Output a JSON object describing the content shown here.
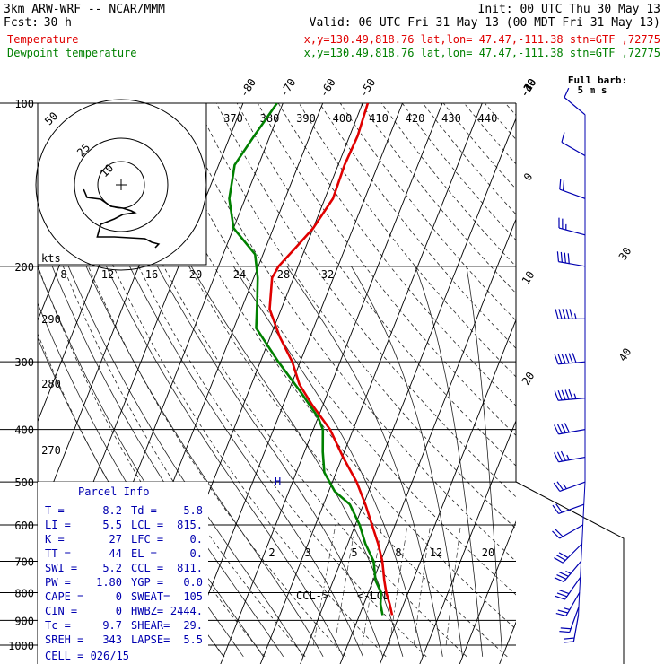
{
  "header": {
    "model": "3km ARW-WRF -- NCAR/MMM",
    "init": "Init: 00 UTC Thu 30 May 13",
    "fcst_label": "Fcst:",
    "fcst_value": "30 h",
    "valid": "Valid: 06 UTC Fri 31 May 13 (00 MDT Fri 31 May 13)",
    "temp_label": "Temperature",
    "dew_label": "Dewpoint temperature",
    "loc": "x,y=130.49,818.76   lat,lon= 47.47,-111.38   stn=GTF ,72775",
    "colors": {
      "temperature": "#e00000",
      "dewpoint": "#008000",
      "wind": "#0000b0"
    }
  },
  "chart_data": {
    "type": "line",
    "title": "",
    "diagram": "skew-T log-p",
    "y_axis": {
      "scale": "log",
      "unit": "hPa",
      "range": [
        1000,
        100
      ],
      "ticks": [
        100,
        200,
        300,
        400,
        500,
        600,
        700,
        800,
        900,
        1000
      ]
    },
    "isotherm_labels": [
      -80,
      -70,
      -60,
      -50,
      -40,
      -30,
      -20,
      -10,
      0,
      10,
      20,
      30,
      40
    ],
    "theta_e_labels": [
      370,
      380,
      390,
      400,
      410,
      420,
      430,
      440
    ],
    "theta_e_labels_left": [
      290,
      280,
      270
    ],
    "mixing_ratio_labels": [
      2,
      3,
      5,
      8,
      12,
      20
    ],
    "series": [
      {
        "name": "Temperature",
        "color": "#e00000",
        "points": [
          [
            880,
            8.2
          ],
          [
            840,
            6.5
          ],
          [
            800,
            4.5
          ],
          [
            760,
            2.8
          ],
          [
            700,
            0.4
          ],
          [
            650,
            -2.4
          ],
          [
            600,
            -5.8
          ],
          [
            550,
            -9.5
          ],
          [
            500,
            -13.9
          ],
          [
            450,
            -19.8
          ],
          [
            400,
            -25.8
          ],
          [
            360,
            -32.8
          ],
          [
            330,
            -38
          ],
          [
            300,
            -42
          ],
          [
            270,
            -47.6
          ],
          [
            240,
            -52.9
          ],
          [
            210,
            -55.4
          ],
          [
            200,
            -54.9
          ],
          [
            185,
            -52.5
          ],
          [
            170,
            -50
          ],
          [
            150,
            -48
          ],
          [
            130,
            -48.4
          ],
          [
            115,
            -48
          ],
          [
            100,
            -48.7
          ]
        ]
      },
      {
        "name": "Dewpoint temperature",
        "color": "#008000",
        "points": [
          [
            880,
            5.8
          ],
          [
            840,
            4.2
          ],
          [
            800,
            3.2
          ],
          [
            760,
            0.6
          ],
          [
            700,
            -1.8
          ],
          [
            650,
            -5.6
          ],
          [
            600,
            -8.9
          ],
          [
            550,
            -13.4
          ],
          [
            520,
            -18.5
          ],
          [
            480,
            -23
          ],
          [
            440,
            -25.4
          ],
          [
            400,
            -27.6
          ],
          [
            380,
            -30
          ],
          [
            340,
            -37.1
          ],
          [
            300,
            -45.5
          ],
          [
            260,
            -54.4
          ],
          [
            230,
            -57
          ],
          [
            210,
            -59
          ],
          [
            190,
            -62
          ],
          [
            170,
            -70
          ],
          [
            150,
            -74
          ],
          [
            130,
            -76
          ],
          [
            115,
            -74
          ],
          [
            100,
            -71.5
          ]
        ]
      }
    ],
    "wind_barbs": [
      {
        "p": 880,
        "dir": 190,
        "spd": 10
      },
      {
        "p": 850,
        "dir": 200,
        "spd": 12
      },
      {
        "p": 800,
        "dir": 210,
        "spd": 14
      },
      {
        "p": 750,
        "dir": 215,
        "spd": 16
      },
      {
        "p": 700,
        "dir": 220,
        "spd": 18
      },
      {
        "p": 650,
        "dir": 225,
        "spd": 16
      },
      {
        "p": 600,
        "dir": 240,
        "spd": 12
      },
      {
        "p": 550,
        "dir": 250,
        "spd": 12
      },
      {
        "p": 500,
        "dir": 250,
        "spd": 14
      },
      {
        "p": 450,
        "dir": 260,
        "spd": 18
      },
      {
        "p": 400,
        "dir": 260,
        "spd": 22
      },
      {
        "p": 350,
        "dir": 265,
        "spd": 28
      },
      {
        "p": 300,
        "dir": 265,
        "spd": 30
      },
      {
        "p": 250,
        "dir": 270,
        "spd": 28
      },
      {
        "p": 200,
        "dir": 280,
        "spd": 20
      },
      {
        "p": 175,
        "dir": 285,
        "spd": 14
      },
      {
        "p": 150,
        "dir": 290,
        "spd": 10
      },
      {
        "p": 125,
        "dir": 300,
        "spd": 7
      },
      {
        "p": 105,
        "dir": 310,
        "spd": 5
      }
    ],
    "barb_legend": {
      "title": "Full barb:",
      "value": "5 m s"
    },
    "annotations": {
      "ccl": "CCL->",
      "lcl": "<-LCL",
      "h_marker": "H"
    },
    "hodograph": {
      "units": "kts",
      "ring_labels": [
        "50",
        "25",
        "10"
      ],
      "speed_labels": [
        "8",
        "12",
        "16",
        "20",
        "24",
        "28",
        "32"
      ],
      "trace": [
        [
          -22,
          -5
        ],
        [
          -20,
          -14
        ],
        [
          -12,
          -16
        ],
        [
          -6,
          -24
        ],
        [
          1,
          -26
        ],
        [
          6,
          -29
        ],
        [
          8,
          -31
        ],
        [
          1,
          -33
        ],
        [
          -4,
          -38
        ],
        [
          -12,
          -44
        ],
        [
          -14,
          -58
        ],
        [
          -4,
          -58
        ],
        [
          14,
          -60
        ],
        [
          18,
          -64
        ],
        [
          22,
          -66
        ],
        [
          20,
          -70
        ]
      ]
    },
    "parcel_info": {
      "title": "Parcel Info",
      "rows": [
        [
          "T  =",
          "8.2",
          "Td =",
          "5.8"
        ],
        [
          "LI =",
          "5.5",
          "LCL =",
          "815."
        ],
        [
          "K  =",
          "27",
          "LFC =",
          "0."
        ],
        [
          "TT =",
          "44",
          "EL  =",
          "0."
        ],
        [
          "SWI =",
          "5.2",
          "CCL =",
          "811."
        ],
        [
          "PW =",
          "1.80",
          "YGP =",
          "0.0"
        ],
        [
          "CAPE =",
          "0",
          "SWEAT=",
          "105"
        ],
        [
          "CIN =",
          "0",
          "HWBZ=",
          "2444."
        ],
        [
          "Tc =",
          "9.7",
          "SHEAR=",
          "29."
        ],
        [
          "SREH =",
          "343",
          "LAPSE=",
          "5.5"
        ]
      ],
      "cell": "CELL = 026/15"
    }
  }
}
